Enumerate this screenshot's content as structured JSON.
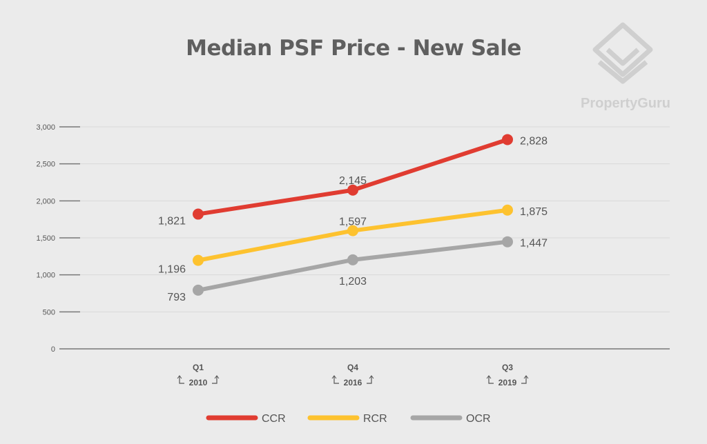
{
  "title": "Median PSF Price - New Sale",
  "logo": {
    "text": "PropertyGuru",
    "icon": "propertyguru-logo-icon"
  },
  "colors": {
    "CCR": "#e03c31",
    "RCR": "#fdc22f",
    "OCR": "#a6a6a6",
    "grid": "#d9d9d9",
    "axis": "#777777"
  },
  "chart_data": {
    "type": "line",
    "title": "Median PSF Price - New Sale",
    "categories": [
      {
        "quarter": "Q1",
        "year": "2010"
      },
      {
        "quarter": "Q4",
        "year": "2016"
      },
      {
        "quarter": "Q3",
        "year": "2019"
      }
    ],
    "series": [
      {
        "name": "CCR",
        "values": [
          1821,
          2145,
          2828
        ],
        "labels": [
          "1,821",
          "2,145",
          "2,828"
        ]
      },
      {
        "name": "RCR",
        "values": [
          1196,
          1597,
          1875
        ],
        "labels": [
          "1,196",
          "1,597",
          "1,875"
        ]
      },
      {
        "name": "OCR",
        "values": [
          793,
          1203,
          1447
        ],
        "labels": [
          "793",
          "1,203",
          "1,447"
        ]
      }
    ],
    "yticks": [
      "0",
      "500",
      "1,000",
      "1,500",
      "2,000",
      "2,500",
      "3,000"
    ],
    "ylim": [
      0,
      3000
    ],
    "grid": true,
    "legend": "bottom"
  }
}
